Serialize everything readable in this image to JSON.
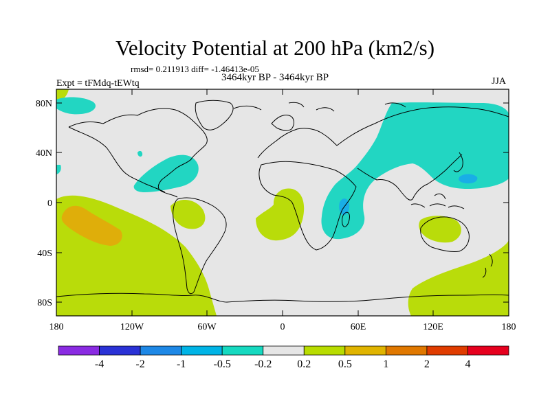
{
  "title": "Velocity Potential at 200 hPa (km2/s)",
  "stats": "rmsd= 0.211913 diff= -1.46413e-05",
  "subtitle": "3464kyr BP - 3464kyr BP",
  "experiment": "Expt = tFMdq-tEWtq",
  "season": "JJA",
  "lat_labels": [
    "80N",
    "40N",
    "0",
    "40S",
    "80S"
  ],
  "lon_labels": [
    "180",
    "120W",
    "60W",
    "0",
    "60E",
    "120E",
    "180"
  ],
  "colorbar": {
    "labels": [
      "-4",
      "-2",
      "-1",
      "-0.5",
      "-0.2",
      "0.2",
      "0.5",
      "1",
      "2",
      "4"
    ],
    "colors": [
      "#8a2be2",
      "#2a32d6",
      "#1e88e6",
      "#00b4e6",
      "#16d9c0",
      "#e6e6e6",
      "#b8dc00",
      "#e0b400",
      "#e07800",
      "#e03c00",
      "#e6001e"
    ]
  },
  "fill_colors": {
    "neg_02_05": "#22d6c2",
    "neg_05_1": "#19aee6",
    "pos_02_05": "#b9dc0a",
    "pos_05_1": "#dfae0a",
    "neutral": "#e6e6e6"
  }
}
